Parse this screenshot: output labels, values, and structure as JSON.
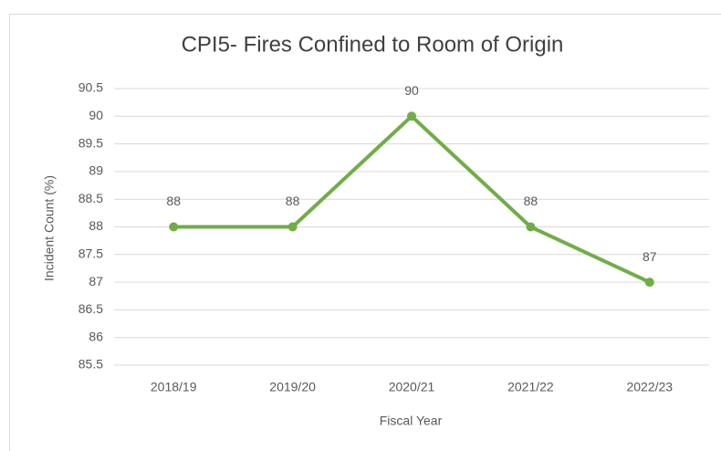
{
  "chart_data": {
    "type": "line",
    "title": "CPI5- Fires Confined to Room of Origin",
    "xlabel": "Fiscal Year",
    "ylabel": "Incident Count (%)",
    "categories": [
      "2018/19",
      "2019/20",
      "2020/21",
      "2021/22",
      "2022/23"
    ],
    "values": [
      88,
      88,
      90,
      88,
      87
    ],
    "color": "#70ad47",
    "ylim": [
      85.5,
      90.5
    ],
    "yticks": [
      85.5,
      86,
      86.5,
      87,
      87.5,
      88,
      88.5,
      89,
      89.5,
      90,
      90.5
    ],
    "grid": true,
    "data_labels": true
  }
}
